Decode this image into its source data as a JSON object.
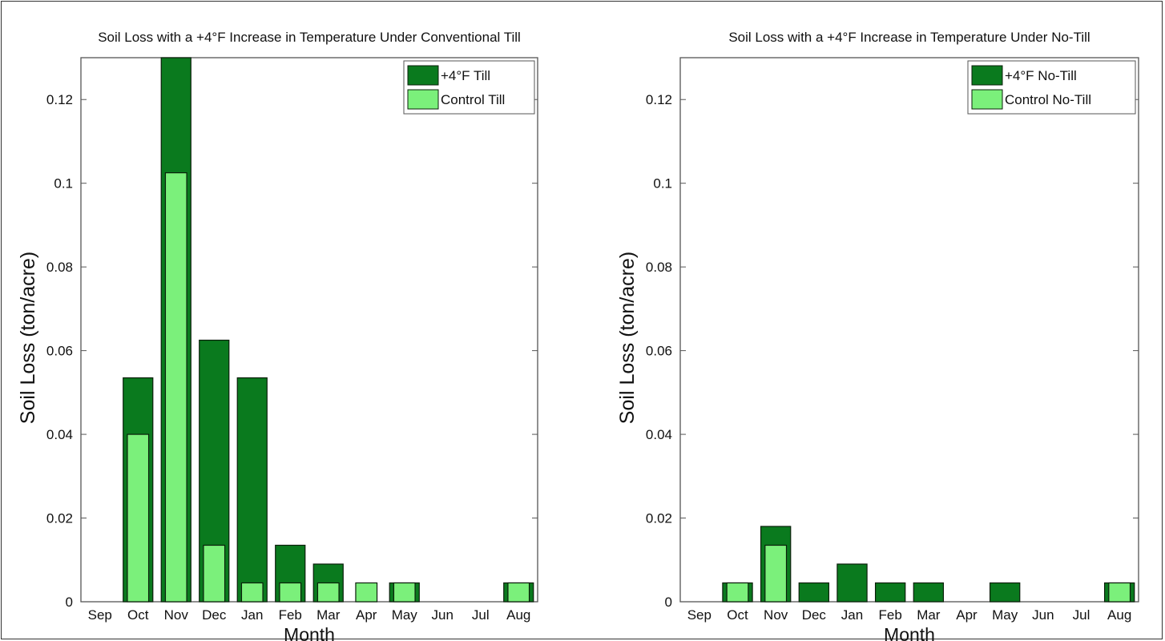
{
  "chart_data": [
    {
      "type": "bar",
      "title": "Soil Loss with a +4°F Increase in Temperature Under Conventional Till",
      "xlabel": "Month",
      "ylabel": "Soil Loss (ton/acre)",
      "ylim": [
        0,
        0.13
      ],
      "yticks": [
        "0",
        "0.02",
        "0.04",
        "0.06",
        "0.08",
        "0.1",
        "0.12"
      ],
      "ytick_values": [
        0,
        0.02,
        0.04,
        0.06,
        0.08,
        0.1,
        0.12
      ],
      "categories": [
        "Sep",
        "Oct",
        "Nov",
        "Dec",
        "Jan",
        "Feb",
        "Mar",
        "Apr",
        "May",
        "Jun",
        "Jul",
        "Aug"
      ],
      "legend_position": "top-right",
      "grid": false,
      "series": [
        {
          "name": "+4°F Till",
          "color": "#0a7a1e",
          "values": [
            0,
            0.0535,
            0.13,
            0.0625,
            0.0535,
            0.0135,
            0.009,
            0,
            0.0045,
            0,
            0,
            0.0045
          ]
        },
        {
          "name": "Control Till",
          "color": "#7bf07b",
          "values": [
            0,
            0.04,
            0.1025,
            0.0135,
            0.0045,
            0.0045,
            0.0045,
            0.0045,
            0.0045,
            0,
            0,
            0.0045
          ]
        }
      ]
    },
    {
      "type": "bar",
      "title": "Soil Loss with a +4°F Increase in Temperature Under No-Till",
      "xlabel": "Month",
      "ylabel": "Soil Loss (ton/acre)",
      "ylim": [
        0,
        0.13
      ],
      "yticks": [
        "0",
        "0.02",
        "0.04",
        "0.06",
        "0.08",
        "0.1",
        "0.12"
      ],
      "ytick_values": [
        0,
        0.02,
        0.04,
        0.06,
        0.08,
        0.1,
        0.12
      ],
      "categories": [
        "Sep",
        "Oct",
        "Nov",
        "Dec",
        "Jan",
        "Feb",
        "Mar",
        "Apr",
        "May",
        "Jun",
        "Jul",
        "Aug"
      ],
      "legend_position": "top-right",
      "grid": false,
      "series": [
        {
          "name": "+4°F No-Till",
          "color": "#0a7a1e",
          "values": [
            0,
            0.0045,
            0.018,
            0.0045,
            0.009,
            0.0045,
            0.0045,
            0,
            0.0045,
            0,
            0,
            0.0045
          ]
        },
        {
          "name": "Control No-Till",
          "color": "#7bf07b",
          "values": [
            0,
            0.0045,
            0.0135,
            0,
            0,
            0,
            0,
            0,
            0,
            0,
            0,
            0.0045
          ]
        }
      ]
    }
  ]
}
